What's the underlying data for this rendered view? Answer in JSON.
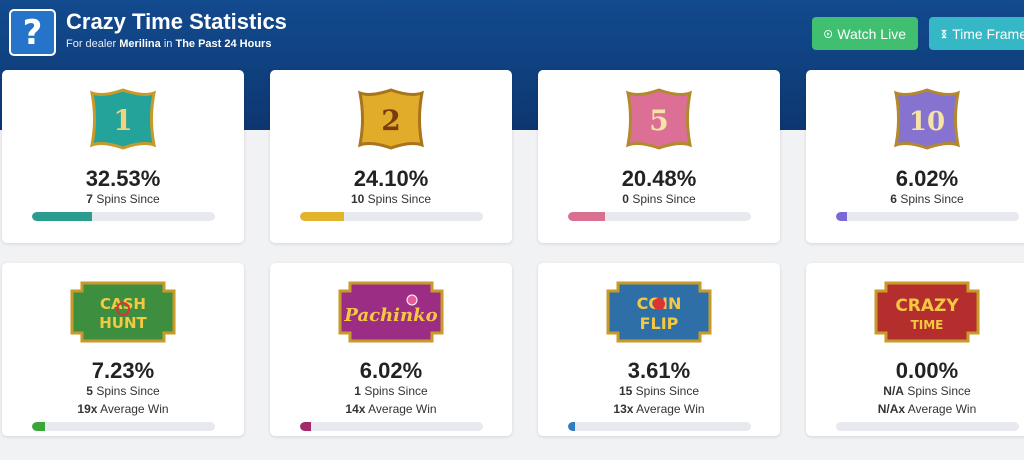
{
  "header": {
    "title": "Crazy Time Statistics",
    "subtitle_prefix": "For dealer",
    "dealer": "Merilina",
    "subtitle_mid": "in",
    "period": "The Past 24 Hours",
    "watch_live_label": "Watch Live",
    "time_frame_label": "Time Frame",
    "help_glyph": "?"
  },
  "colors": {
    "banner": "#124a8e",
    "watch_live": "#3fbf6f",
    "time_frame": "#35b7c6"
  },
  "cards": [
    {
      "id": "1",
      "emblem_text": "1",
      "percent": "32.53%",
      "spins": "7",
      "spins_label": "Spins Since",
      "progress": 0.3253,
      "color": "#2a9d8f",
      "emblem_fill": "#24a39a"
    },
    {
      "id": "2",
      "emblem_text": "2",
      "percent": "24.10%",
      "spins": "10",
      "spins_label": "Spins Since",
      "progress": 0.241,
      "color": "#e2b32b",
      "emblem_fill": "#e0ac2a"
    },
    {
      "id": "5",
      "emblem_text": "5",
      "percent": "20.48%",
      "spins": "0",
      "spins_label": "Spins Since",
      "progress": 0.2048,
      "color": "#d9708f",
      "emblem_fill": "#dc6f96"
    },
    {
      "id": "10",
      "emblem_text": "10",
      "percent": "6.02%",
      "spins": "6",
      "spins_label": "Spins Since",
      "progress": 0.0602,
      "color": "#7b68d6",
      "emblem_fill": "#8672cf"
    },
    {
      "id": "cash-hunt",
      "emblem_text": "CASH HUNT",
      "percent": "7.23%",
      "spins": "5",
      "spins_label": "Spins Since",
      "avg": "19x",
      "avg_label": "Average Win",
      "progress": 0.0723,
      "color": "#3aa63a",
      "emblem_fill": "#3d8f3f"
    },
    {
      "id": "pachinko",
      "emblem_text": "Pachinko",
      "percent": "6.02%",
      "spins": "1",
      "spins_label": "Spins Since",
      "avg": "14x",
      "avg_label": "Average Win",
      "progress": 0.0602,
      "color": "#a3296b",
      "emblem_fill": "#9b2e84"
    },
    {
      "id": "coin-flip",
      "emblem_text": "COIN FLIP",
      "percent": "3.61%",
      "spins": "15",
      "spins_label": "Spins Since",
      "avg": "13x",
      "avg_label": "Average Win",
      "progress": 0.0361,
      "color": "#2f7dbf",
      "emblem_fill": "#2e6fa8"
    },
    {
      "id": "crazy-time",
      "emblem_text": "CRAZY TIME",
      "percent": "0.00%",
      "spins": "N/A",
      "spins_label": "Spins Since",
      "avg": "N/Ax",
      "avg_label": "Average Win",
      "progress": 0,
      "color": "#c0392b",
      "emblem_fill": "#b52e2e"
    }
  ]
}
